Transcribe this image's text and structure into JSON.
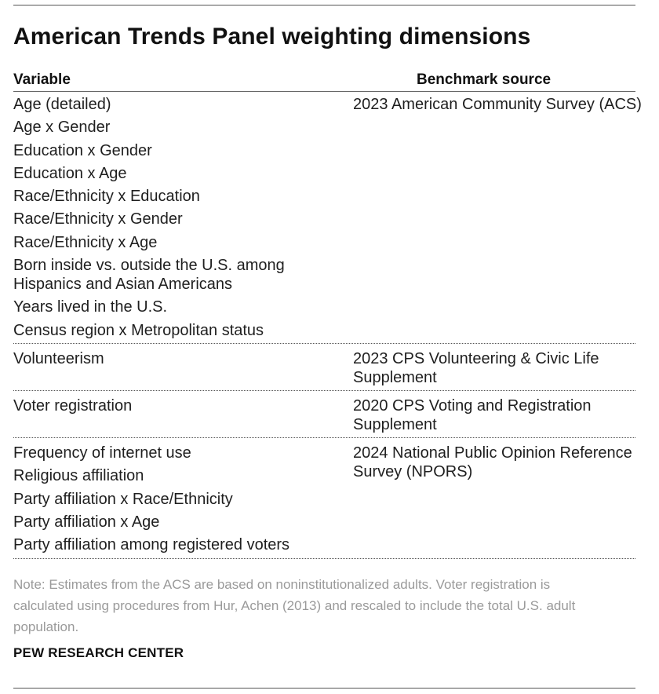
{
  "title": "American Trends Panel weighting dimensions",
  "columns": {
    "variable": "Variable",
    "source": "Benchmark source"
  },
  "groups": [
    {
      "variables": [
        "Age (detailed)",
        "Age x Gender",
        "Education x Gender",
        "Education x Age",
        "Race/Ethnicity x Education",
        "Race/Ethnicity x Gender",
        "Race/Ethnicity x Age",
        "Born inside vs. outside the U.S. among Hispanics and Asian Americans",
        "Years lived in the U.S.",
        "Census region x Metropolitan status"
      ],
      "source": "2023 American Community Survey (ACS)"
    },
    {
      "variables": [
        "Volunteerism"
      ],
      "source": "2023 CPS Volunteering & Civic Life Supplement"
    },
    {
      "variables": [
        "Voter registration"
      ],
      "source": "2020 CPS Voting and Registration Supplement"
    },
    {
      "variables": [
        "Frequency of internet use",
        "Religious affiliation",
        "Party affiliation x Race/Ethnicity",
        "Party affiliation x Age",
        "Party affiliation among registered voters"
      ],
      "source": "2024 National Public Opinion Reference Survey (NPORS)"
    }
  ],
  "note": "Note: Estimates from the ACS are based on noninstitutionalized adults. Voter registration is calculated using procedures from Hur, Achen (2013) and rescaled to include the total U.S. adult population.",
  "brand": "PEW RESEARCH CENTER"
}
